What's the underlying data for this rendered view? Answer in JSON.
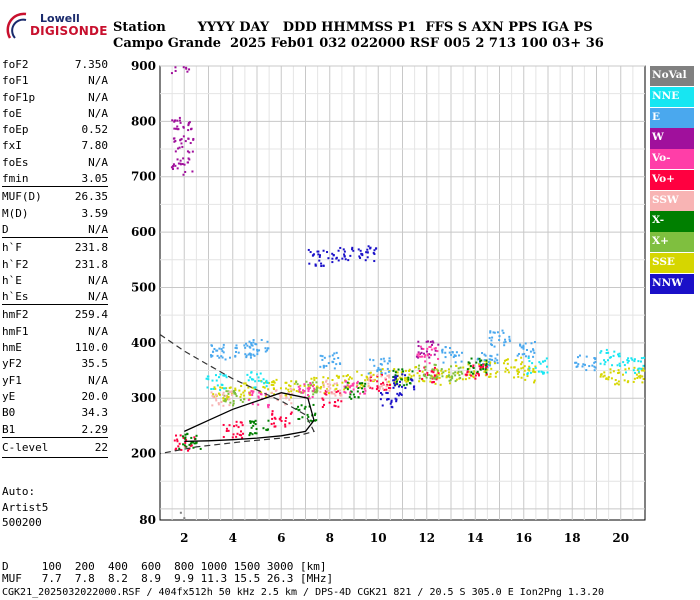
{
  "header": {
    "brand_top": "Lowell",
    "brand_name": "DIGISONDE",
    "row1": "Station       YYYY DAY   DDD HHMMSS P1  FFS S AXN PPS IGA PS",
    "row2": "Campo Grande  2025 Feb01 032 022000 RSF 005 2 713 100 03+ 36"
  },
  "params": [
    {
      "label": "foF2",
      "value": "7.350"
    },
    {
      "label": "foF1",
      "value": "N/A"
    },
    {
      "label": "foF1p",
      "value": "N/A"
    },
    {
      "label": "foE",
      "value": "N/A"
    },
    {
      "label": "foEp",
      "value": "0.52"
    },
    {
      "label": "fxI",
      "value": "7.80"
    },
    {
      "label": "foEs",
      "value": "N/A"
    },
    {
      "label": "fmin",
      "value": "3.05"
    },
    {
      "label": "MUF(D)",
      "value": "26.35"
    },
    {
      "label": "M(D)",
      "value": "3.59"
    },
    {
      "label": "D",
      "value": "N/A"
    },
    {
      "label": "h`F",
      "value": "231.8"
    },
    {
      "label": "h`F2",
      "value": "231.8"
    },
    {
      "label": "h`E",
      "value": "N/A"
    },
    {
      "label": "h`Es",
      "value": "N/A"
    },
    {
      "label": "hmF2",
      "value": "259.4"
    },
    {
      "label": "hmF1",
      "value": "N/A"
    },
    {
      "label": "hmE",
      "value": "110.0"
    },
    {
      "label": "yF2",
      "value": "35.5"
    },
    {
      "label": "yF1",
      "value": "N/A"
    },
    {
      "label": "yE",
      "value": "20.0"
    },
    {
      "label": "B0",
      "value": "34.3"
    },
    {
      "label": "B1",
      "value": "2.29"
    },
    {
      "label": "C-level",
      "value": "22"
    }
  ],
  "auto": {
    "line1": "Auto:",
    "line2": "Artist5",
    "line3": "500200"
  },
  "legend": [
    {
      "label": "NoVal",
      "color": "#808080"
    },
    {
      "label": "NNE",
      "color": "#17e6f2"
    },
    {
      "label": "E",
      "color": "#4aa8ee"
    },
    {
      "label": "W",
      "color": "#a0109c"
    },
    {
      "label": "Vo-",
      "color": "#ff3ea8"
    },
    {
      "label": "Vo+",
      "color": "#ff0040"
    },
    {
      "label": "SSW",
      "color": "#f8b4b4"
    },
    {
      "label": "X-",
      "color": "#007f00"
    },
    {
      "label": "X+",
      "color": "#7fbf3f"
    },
    {
      "label": "SSE",
      "color": "#d6d600"
    },
    {
      "label": "NNW",
      "color": "#1a10c8"
    }
  ],
  "bottom": {
    "line1": "D     100  200  400  600  800 1000 1500 3000 [km]",
    "line2": "MUF   7.7  7.8  8.2  8.9  9.9 11.3 15.5 26.3 [MHz]",
    "line3": "CGK21_2025032022000.RSF / 404fx512h 50 kHz 2.5 km / DPS-4D CGK21 821 / 20.5 S 305.0 E Ion2Png 1.3.20"
  },
  "chart_data": {
    "type": "scatter",
    "xlabel": "",
    "ylabel": "",
    "xlim": [
      1.0,
      21.0
    ],
    "ylim": [
      80,
      900
    ],
    "x_ticks": [
      2,
      4,
      6,
      8,
      10,
      12,
      14,
      16,
      18,
      20
    ],
    "y_ticks": [
      80,
      200,
      300,
      400,
      500,
      600,
      700,
      800,
      900
    ],
    "grid": true,
    "legend_position": "right",
    "series": [
      {
        "name": "NoVal",
        "color": "#808080",
        "points": [
          [
            1.5,
            80
          ],
          [
            1.7,
            80
          ],
          [
            1.8,
            80
          ]
        ]
      },
      {
        "name": "SSE",
        "color": "#d6d600",
        "points": [
          [
            3.5,
            310
          ],
          [
            4.5,
            315
          ],
          [
            5.5,
            320
          ],
          [
            6.5,
            318
          ],
          [
            7.5,
            325
          ],
          [
            8.5,
            330
          ],
          [
            9.5,
            335
          ],
          [
            10.5,
            340
          ],
          [
            11.5,
            345
          ],
          [
            12.5,
            340
          ],
          [
            13.5,
            350
          ],
          [
            14.5,
            355
          ],
          [
            15.5,
            360
          ],
          [
            16,
            345
          ],
          [
            19.5,
            340
          ],
          [
            20.5,
            345
          ]
        ]
      },
      {
        "name": "E",
        "color": "#4aa8ee",
        "points": [
          [
            3.5,
            385
          ],
          [
            4.5,
            390
          ],
          [
            5,
            395
          ],
          [
            8,
            370
          ],
          [
            10,
            360
          ],
          [
            13,
            380
          ],
          [
            14.5,
            370
          ],
          [
            15,
            410
          ],
          [
            16,
            390
          ],
          [
            18.5,
            365
          ]
        ]
      },
      {
        "name": "Vo+",
        "color": "#ff0040",
        "points": [
          [
            2,
            222
          ],
          [
            4,
            245
          ],
          [
            6,
            265
          ],
          [
            8,
            300
          ],
          [
            10,
            330
          ],
          [
            12,
            345
          ],
          [
            14,
            350
          ]
        ]
      },
      {
        "name": "X-",
        "color": "#007f00",
        "points": [
          [
            2.2,
            225
          ],
          [
            5,
            250
          ],
          [
            7,
            275
          ],
          [
            9,
            315
          ],
          [
            11,
            340
          ],
          [
            14,
            360
          ]
        ]
      },
      {
        "name": "NNW",
        "color": "#1a10c8",
        "points": [
          [
            7.5,
            555
          ],
          [
            8.5,
            560
          ],
          [
            9.5,
            563
          ],
          [
            10.5,
            300
          ],
          [
            11,
            330
          ]
        ]
      },
      {
        "name": "W",
        "color": "#a0109c",
        "points": [
          [
            1.9,
            900
          ],
          [
            1.9,
            800
          ],
          [
            1.9,
            760
          ],
          [
            1.9,
            720
          ],
          [
            12,
            390
          ]
        ]
      },
      {
        "name": "NNE",
        "color": "#17e6f2",
        "points": [
          [
            3.3,
            330
          ],
          [
            5,
            335
          ],
          [
            16.5,
            360
          ],
          [
            19.5,
            375
          ],
          [
            20.5,
            360
          ]
        ]
      },
      {
        "name": "X+",
        "color": "#7fbf3f",
        "points": [
          [
            4,
            300
          ],
          [
            7,
            320
          ],
          [
            12,
            350
          ],
          [
            13,
            345
          ]
        ]
      },
      {
        "name": "SSW",
        "color": "#f8b4b4",
        "points": [
          [
            3.5,
            300
          ],
          [
            6,
            305
          ],
          [
            8,
            320
          ],
          [
            10,
            330
          ]
        ]
      },
      {
        "name": "Vo-",
        "color": "#ff3ea8",
        "points": [
          [
            5,
            300
          ],
          [
            7,
            315
          ],
          [
            9,
            325
          ],
          [
            12,
            380
          ]
        ]
      }
    ],
    "profile_dashed": {
      "x": [
        1.0,
        2.0,
        3.0,
        4.0,
        5.0,
        6.0,
        7.0,
        7.35,
        6.5,
        4.5,
        2.5,
        1.0
      ],
      "y": [
        415,
        385,
        360,
        335,
        315,
        295,
        270,
        240,
        230,
        222,
        212,
        200
      ]
    },
    "profile_solid": {
      "x": [
        2.0,
        3.0,
        4.0,
        5.0,
        6.0,
        7.0,
        7.35,
        7.1,
        6.0,
        5.0,
        4.0,
        3.0,
        2.0
      ],
      "y": [
        222,
        223,
        225,
        228,
        232,
        240,
        260,
        300,
        310,
        295,
        280,
        260,
        240
      ]
    }
  }
}
